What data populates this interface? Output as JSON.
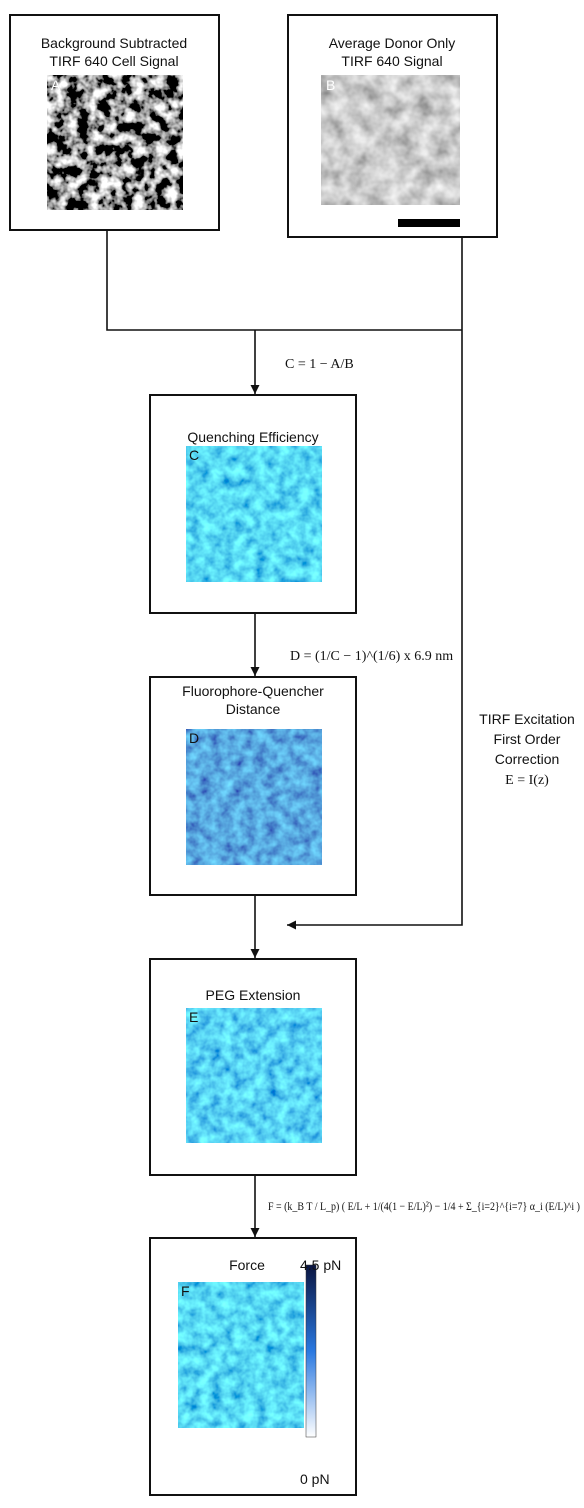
{
  "panels": [
    {
      "title_lines": [
        "Background Subtracted",
        "TIRF 640 Cell Signal"
      ],
      "label": "A"
    },
    {
      "title_lines": [
        "Average Donor Only",
        "TIRF 640 Signal"
      ],
      "label": "B"
    },
    {
      "title_lines": [
        "Quenching Efficiency"
      ],
      "label": "C"
    },
    {
      "title_lines": [
        "Fluorophore-Quencher",
        "Distance"
      ],
      "label": "D"
    },
    {
      "title_lines": [
        "PEG Extension"
      ],
      "label": "E"
    },
    {
      "title_lines": [
        "Force"
      ],
      "label": "F"
    }
  ],
  "formulas": {
    "c": "C = 1 − A/B",
    "d": "D = (1/C − 1)^(1/6) x 6.9 nm",
    "f": "F = (k_B T / L_p) ( E/L + 1/(4(1 − E/L)²) − 1/4 + Σ_{i=2}^{i=7} α_i (E/L)^i )"
  },
  "correction": {
    "lines": [
      "TIRF Excitation",
      "First Order",
      "Correction"
    ],
    "formula": "E = I(z)"
  },
  "colorbar": {
    "max_label": "4.5 pN",
    "min_label": "0 pN"
  }
}
